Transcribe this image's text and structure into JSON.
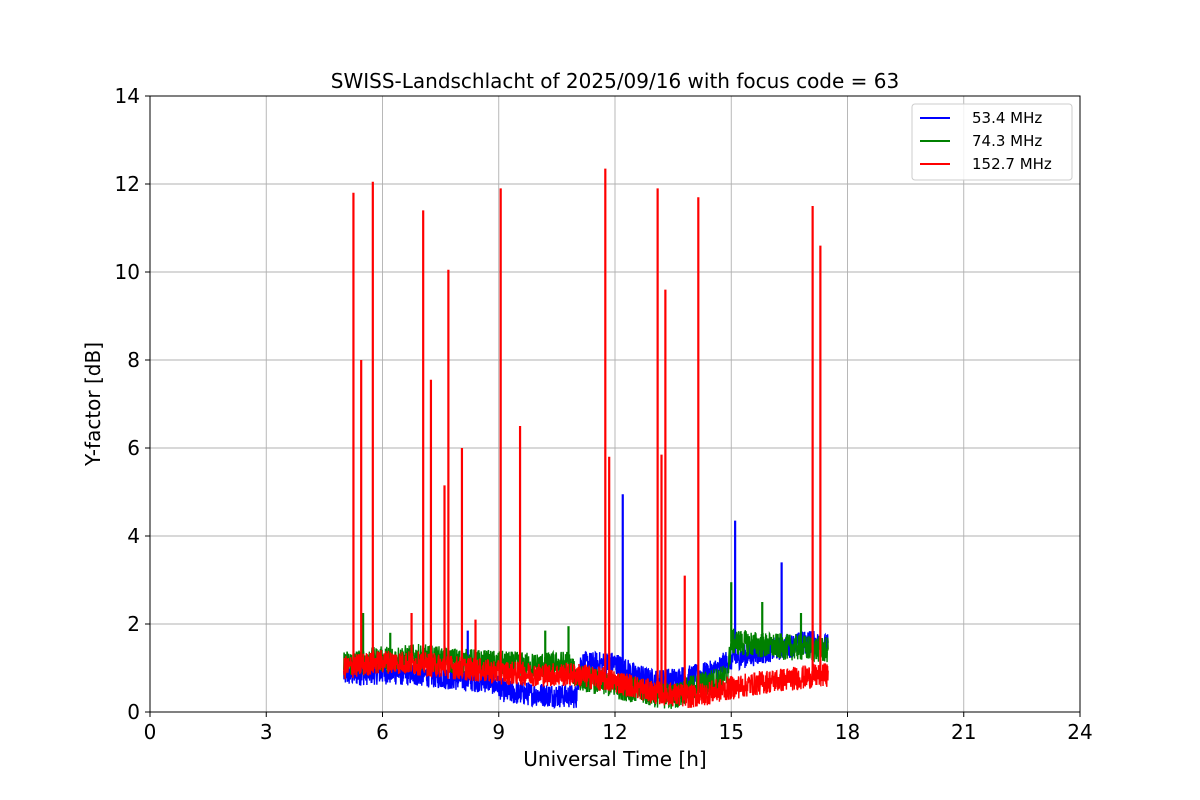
{
  "chart_data": {
    "type": "line",
    "title": "SWISS-Landschlacht of 2025/09/16 with focus code = 63",
    "xlabel": "Universal Time [h]",
    "ylabel": "Y-factor [dB]",
    "xlim": [
      0,
      24
    ],
    "ylim": [
      0,
      14
    ],
    "xticks": [
      "0",
      "3",
      "6",
      "9",
      "12",
      "15",
      "18",
      "21",
      "24"
    ],
    "yticks": [
      "0",
      "2",
      "4",
      "6",
      "8",
      "10",
      "12",
      "14"
    ],
    "grid": true,
    "legend_position": "top-right",
    "series": [
      {
        "name": "53.4 MHz",
        "color": "#0000ff",
        "baseline": [
          [
            5.0,
            0.85
          ],
          [
            6.0,
            0.9
          ],
          [
            7.0,
            0.85
          ],
          [
            8.0,
            0.75
          ],
          [
            8.8,
            0.7
          ],
          [
            9.2,
            0.45
          ],
          [
            10.0,
            0.4
          ],
          [
            11.0,
            0.35
          ],
          [
            11.1,
            1.1
          ],
          [
            12.0,
            1.1
          ],
          [
            12.5,
            0.85
          ],
          [
            13.0,
            0.7
          ],
          [
            14.0,
            0.8
          ],
          [
            14.5,
            0.9
          ],
          [
            15.0,
            1.2
          ],
          [
            16.0,
            1.4
          ],
          [
            17.0,
            1.6
          ],
          [
            17.5,
            1.5
          ]
        ],
        "spikes": [
          [
            8.2,
            1.85
          ],
          [
            12.2,
            4.95
          ],
          [
            15.1,
            4.35
          ],
          [
            16.3,
            3.4
          ]
        ]
      },
      {
        "name": "74.3 MHz",
        "color": "#008000",
        "baseline": [
          [
            5.0,
            1.1
          ],
          [
            6.0,
            1.2
          ],
          [
            7.0,
            1.25
          ],
          [
            8.0,
            1.15
          ],
          [
            9.0,
            1.1
          ],
          [
            10.0,
            1.05
          ],
          [
            10.8,
            1.1
          ],
          [
            11.0,
            0.8
          ],
          [
            12.0,
            0.6
          ],
          [
            13.0,
            0.4
          ],
          [
            13.5,
            0.35
          ],
          [
            14.0,
            0.55
          ],
          [
            14.9,
            0.8
          ],
          [
            15.0,
            1.6
          ],
          [
            16.0,
            1.5
          ],
          [
            17.0,
            1.45
          ],
          [
            17.5,
            1.4
          ]
        ],
        "spikes": [
          [
            5.5,
            2.25
          ],
          [
            6.2,
            1.8
          ],
          [
            10.2,
            1.85
          ],
          [
            10.8,
            1.95
          ],
          [
            15.0,
            2.95
          ],
          [
            15.8,
            2.5
          ],
          [
            16.8,
            2.25
          ]
        ]
      },
      {
        "name": "152.7 MHz",
        "color": "#ff0000",
        "baseline": [
          [
            5.0,
            1.0
          ],
          [
            6.0,
            1.15
          ],
          [
            7.0,
            1.1
          ],
          [
            8.0,
            1.0
          ],
          [
            9.0,
            0.9
          ],
          [
            10.0,
            0.85
          ],
          [
            11.0,
            0.85
          ],
          [
            12.0,
            0.7
          ],
          [
            13.0,
            0.45
          ],
          [
            14.0,
            0.35
          ],
          [
            15.0,
            0.55
          ],
          [
            16.0,
            0.7
          ],
          [
            17.0,
            0.8
          ],
          [
            17.5,
            0.85
          ]
        ],
        "spikes": [
          [
            5.25,
            11.8
          ],
          [
            5.45,
            8.0
          ],
          [
            5.75,
            12.05
          ],
          [
            6.75,
            2.25
          ],
          [
            7.05,
            11.4
          ],
          [
            7.25,
            7.55
          ],
          [
            7.6,
            5.15
          ],
          [
            7.7,
            10.05
          ],
          [
            8.05,
            6.0
          ],
          [
            8.4,
            2.1
          ],
          [
            9.05,
            11.9
          ],
          [
            9.55,
            6.5
          ],
          [
            11.75,
            12.35
          ],
          [
            11.85,
            5.8
          ],
          [
            13.1,
            11.9
          ],
          [
            13.2,
            5.85
          ],
          [
            13.3,
            9.6
          ],
          [
            13.8,
            3.1
          ],
          [
            14.15,
            11.7
          ],
          [
            17.1,
            11.5
          ],
          [
            17.3,
            10.6
          ]
        ]
      }
    ]
  }
}
